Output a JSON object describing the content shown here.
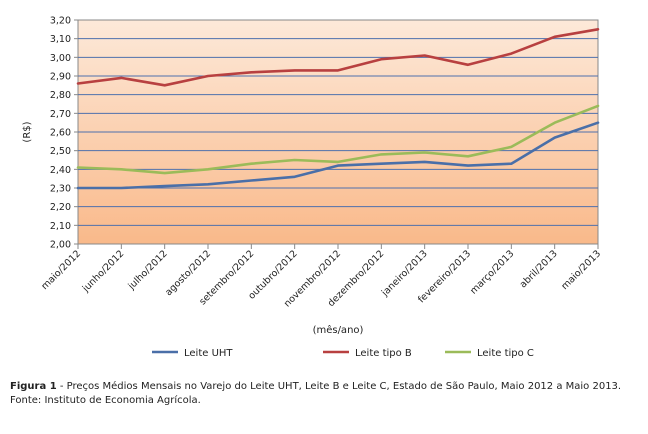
{
  "chart_data": {
    "type": "line",
    "categories": [
      "maio/2012",
      "junho/2012",
      "julho/2012",
      "agosto/2012",
      "setembro/2012",
      "outubro/2012",
      "novembro/2012",
      "dezembro/2012",
      "janeiro/2013",
      "fevereiro/2013",
      "março/2013",
      "abril/2013",
      "maio/2013"
    ],
    "ylabel": "(R$)",
    "xlabel": "(mês/ano)",
    "ylim": [
      2.0,
      3.2
    ],
    "ytick_step": 0.1,
    "ytick_labels": [
      "2,00",
      "2,10",
      "2,20",
      "2,30",
      "2,40",
      "2,50",
      "2,60",
      "2,70",
      "2,80",
      "2,90",
      "3,00",
      "3,10",
      "3,20"
    ],
    "grid": true,
    "legend_position": "bottom",
    "series": [
      {
        "name": "Leite UHT",
        "color": "#4a6fa8",
        "values": [
          2.3,
          2.3,
          2.31,
          2.32,
          2.34,
          2.36,
          2.42,
          2.43,
          2.44,
          2.42,
          2.43,
          2.57,
          2.65
        ]
      },
      {
        "name": "Leite tipo B",
        "color": "#b84040",
        "values": [
          2.86,
          2.89,
          2.85,
          2.9,
          2.92,
          2.93,
          2.93,
          2.99,
          3.01,
          2.96,
          3.02,
          3.11,
          3.15
        ]
      },
      {
        "name": "Leite tipo C",
        "color": "#9bbb59",
        "values": [
          2.41,
          2.4,
          2.38,
          2.4,
          2.43,
          2.45,
          2.44,
          2.48,
          2.49,
          2.47,
          2.52,
          2.65,
          2.74
        ]
      }
    ],
    "colors": {
      "bg_top": "#fde9d9",
      "bg_bottom": "#f9b98a",
      "grid": "#4e70ad",
      "frame": "#888888"
    }
  },
  "caption": {
    "label": "Figura 1",
    "text": " - Preços Médios Mensais no Varejo do Leite UHT, Leite B e Leite C, Estado de São Paulo, Maio 2012 a Maio 2013.",
    "source": "Fonte: Instituto de Economia Agrícola."
  }
}
